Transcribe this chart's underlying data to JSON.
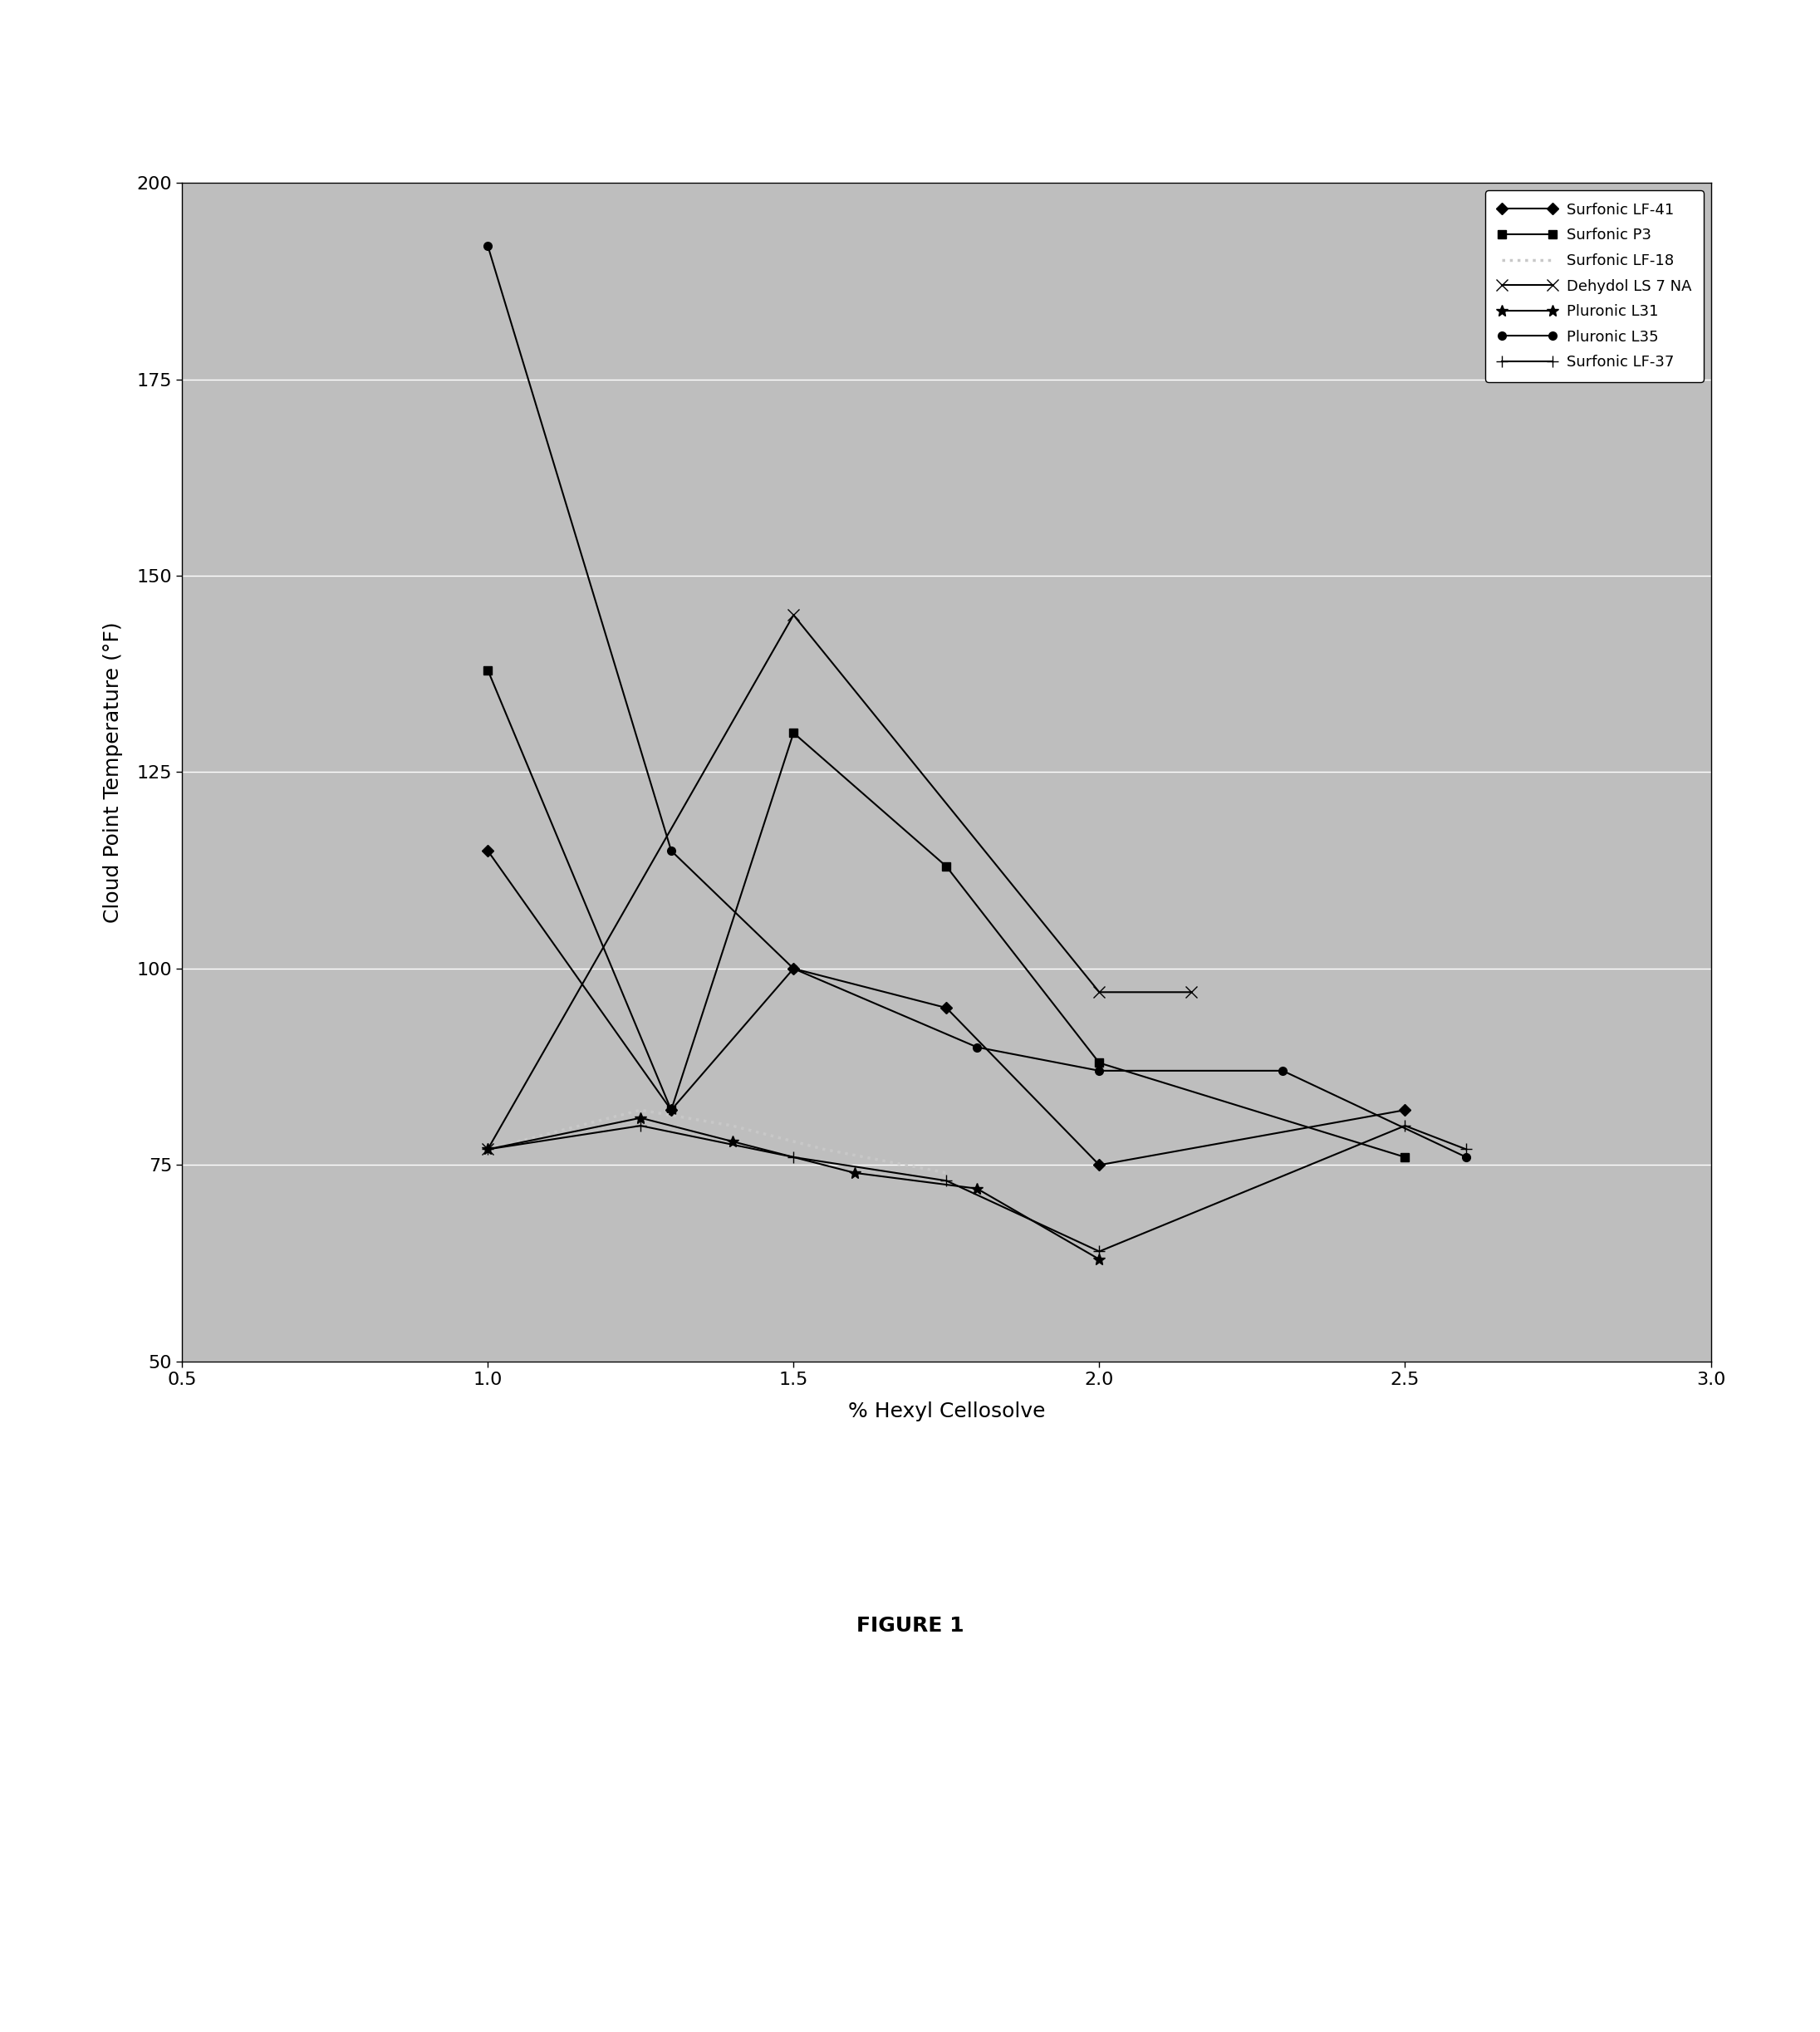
{
  "xlabel": "% Hexyl Cellosolve",
  "ylabel": "Cloud Point Temperature (°F)",
  "xlim": [
    0.5,
    3.0
  ],
  "ylim": [
    50,
    200
  ],
  "xticks": [
    0.5,
    1.0,
    1.5,
    2.0,
    2.5,
    3.0
  ],
  "yticks": [
    50,
    75,
    100,
    125,
    150,
    175,
    200
  ],
  "figure_caption": "FIGURE 1",
  "plot_bg_color": "#bebebe",
  "fig_bg_color": "#ffffff",
  "grid_color": "#d8d8d8",
  "series": [
    {
      "name": "Surfonic LF-41",
      "x": [
        1.0,
        1.3,
        1.5,
        1.75,
        2.0,
        2.5
      ],
      "y": [
        115,
        82,
        100,
        95,
        75,
        82
      ],
      "color": "#000000",
      "marker": "D",
      "markersize": 7,
      "linestyle": "-",
      "linewidth": 1.5,
      "markerfacecolor": "#000000"
    },
    {
      "name": "Surfonic P3",
      "x": [
        1.0,
        1.3,
        1.5,
        1.75,
        2.0,
        2.5
      ],
      "y": [
        138,
        82,
        130,
        113,
        88,
        76
      ],
      "color": "#000000",
      "marker": "s",
      "markersize": 7,
      "linestyle": "-",
      "linewidth": 1.5,
      "markerfacecolor": "#000000"
    },
    {
      "name": "Surfonic LF-18",
      "x": [
        1.0,
        1.25,
        1.4,
        1.55,
        1.75
      ],
      "y": [
        77,
        82,
        80,
        77,
        74
      ],
      "color": "#c8c8c8",
      "marker": null,
      "markersize": 0,
      "linestyle": ":",
      "linewidth": 2.5,
      "markerfacecolor": "#c8c8c8"
    },
    {
      "name": "Dehydol LS 7 NA",
      "x": [
        1.0,
        1.5,
        2.0,
        2.15
      ],
      "y": [
        77,
        145,
        97,
        97
      ],
      "color": "#000000",
      "marker": "x",
      "markersize": 10,
      "linestyle": "-",
      "linewidth": 1.5,
      "markerfacecolor": "#000000"
    },
    {
      "name": "Pluronic L31",
      "x": [
        1.0,
        1.25,
        1.4,
        1.6,
        1.8,
        2.0
      ],
      "y": [
        77,
        81,
        78,
        74,
        72,
        63
      ],
      "color": "#000000",
      "marker": "*",
      "markersize": 10,
      "linestyle": "-",
      "linewidth": 1.5,
      "markerfacecolor": "#000000"
    },
    {
      "name": "Pluronic L35",
      "x": [
        1.0,
        1.3,
        1.5,
        1.8,
        2.0,
        2.3,
        2.6
      ],
      "y": [
        192,
        115,
        100,
        90,
        87,
        87,
        76
      ],
      "color": "#000000",
      "marker": "o",
      "markersize": 7,
      "linestyle": "-",
      "linewidth": 1.5,
      "markerfacecolor": "#000000"
    },
    {
      "name": "Surfonic LF-37",
      "x": [
        1.0,
        1.25,
        1.5,
        1.75,
        2.0,
        2.5,
        2.6
      ],
      "y": [
        77,
        80,
        76,
        73,
        64,
        80,
        77
      ],
      "color": "#000000",
      "marker": "+",
      "markersize": 10,
      "linestyle": "-",
      "linewidth": 1.5,
      "markerfacecolor": "#000000"
    }
  ]
}
